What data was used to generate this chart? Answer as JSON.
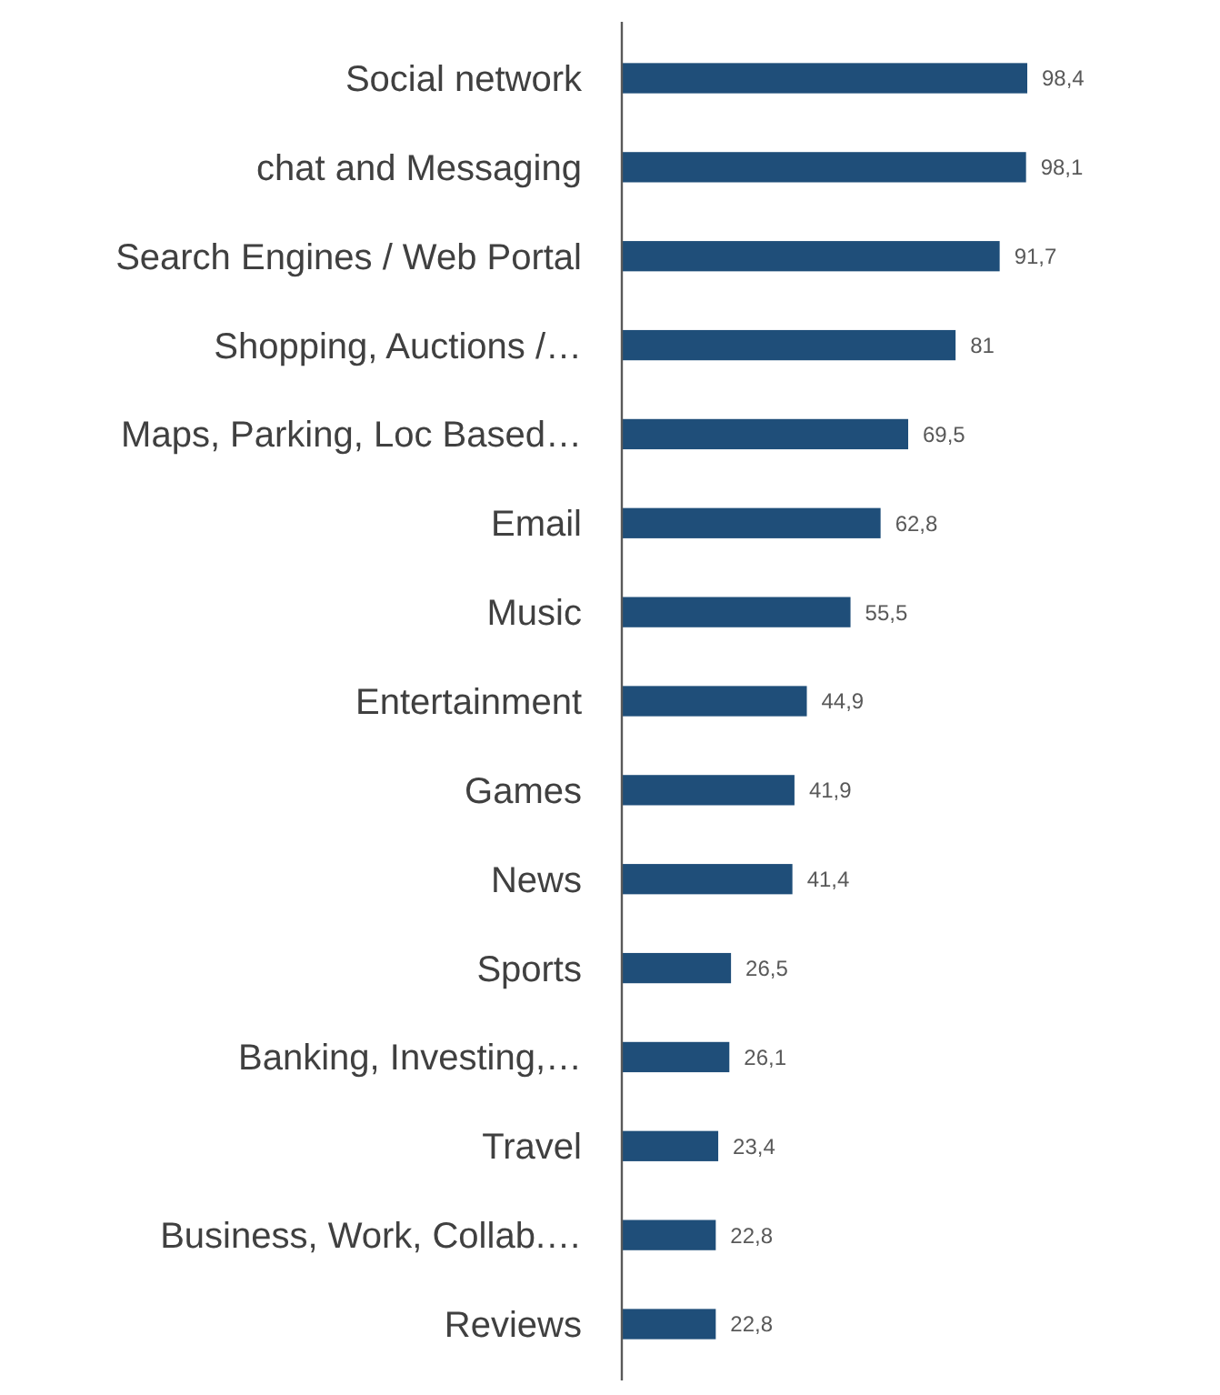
{
  "chart_data": {
    "type": "bar",
    "orientation": "horizontal",
    "color": "#1f4e79",
    "categories": [
      "Social network",
      "chat and Messaging",
      "Search Engines / Web Portal",
      "Shopping, Auctions /…",
      "Maps, Parking, Loc Based…",
      "Email",
      "Music",
      "Entertainment",
      "Games",
      "News",
      "Sports",
      "Banking, Investing,…",
      "Travel",
      "Business, Work, Collab.…",
      "Reviews"
    ],
    "values": [
      98.4,
      98.1,
      91.7,
      81,
      69.5,
      62.8,
      55.5,
      44.9,
      41.9,
      41.4,
      26.5,
      26.1,
      23.4,
      22.8,
      22.8
    ],
    "value_labels": [
      "98,4",
      "98,1",
      "91,7",
      "81",
      "69,5",
      "62,8",
      "55,5",
      "44,9",
      "41,9",
      "41,4",
      "26,5",
      "26,1",
      "23,4",
      "22,8",
      "22,8"
    ]
  }
}
